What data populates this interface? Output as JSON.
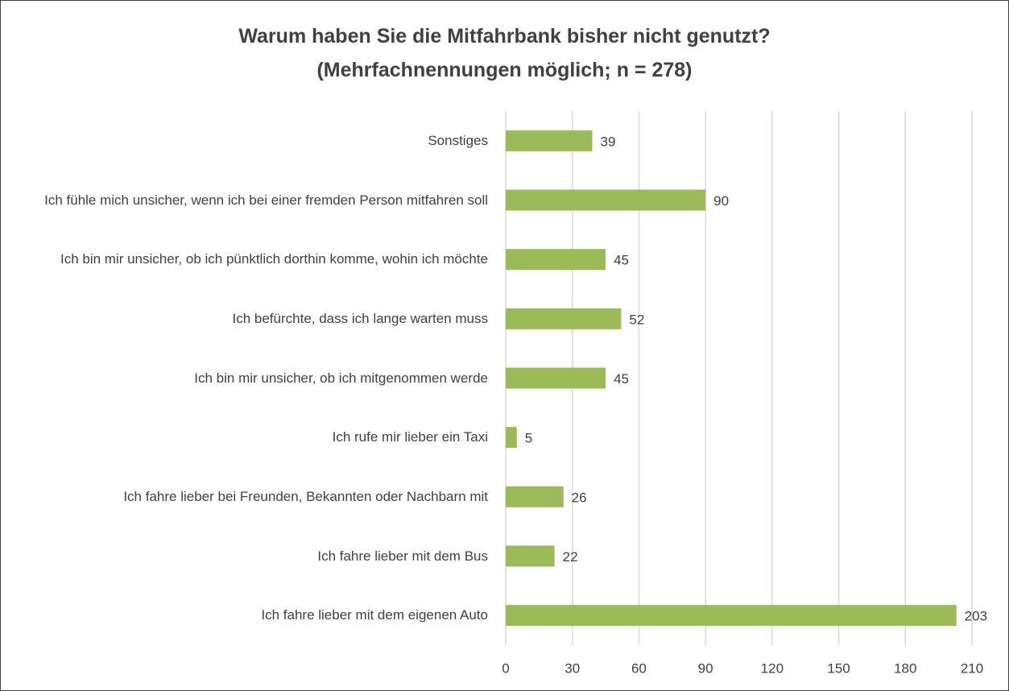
{
  "chart_data": {
    "type": "bar",
    "orientation": "horizontal",
    "title": "Warum haben Sie die Mitfahrbank bisher nicht genutzt?",
    "subtitle": "(Mehrfachnennungen möglich; n = 278)",
    "categories": [
      "Sonstiges",
      "Ich fühle mich unsicher, wenn ich bei einer fremden Person mitfahren soll",
      "Ich bin mir unsicher, ob ich pünktlich dorthin komme, wohin ich möchte",
      "Ich befürchte, dass ich lange warten muss",
      "Ich bin mir unsicher, ob ich mitgenommen werde",
      "Ich rufe mir lieber ein Taxi",
      "Ich fahre lieber bei Freunden, Bekannten oder Nachbarn mit",
      "Ich fahre lieber mit dem Bus",
      "Ich fahre lieber mit dem eigenen Auto"
    ],
    "values": [
      39,
      90,
      45,
      52,
      45,
      5,
      26,
      22,
      203
    ],
    "color": "#9bbb59",
    "xlim": [
      0,
      210
    ],
    "xticks": [
      0,
      30,
      60,
      90,
      120,
      150,
      180,
      210
    ],
    "grid": true
  }
}
